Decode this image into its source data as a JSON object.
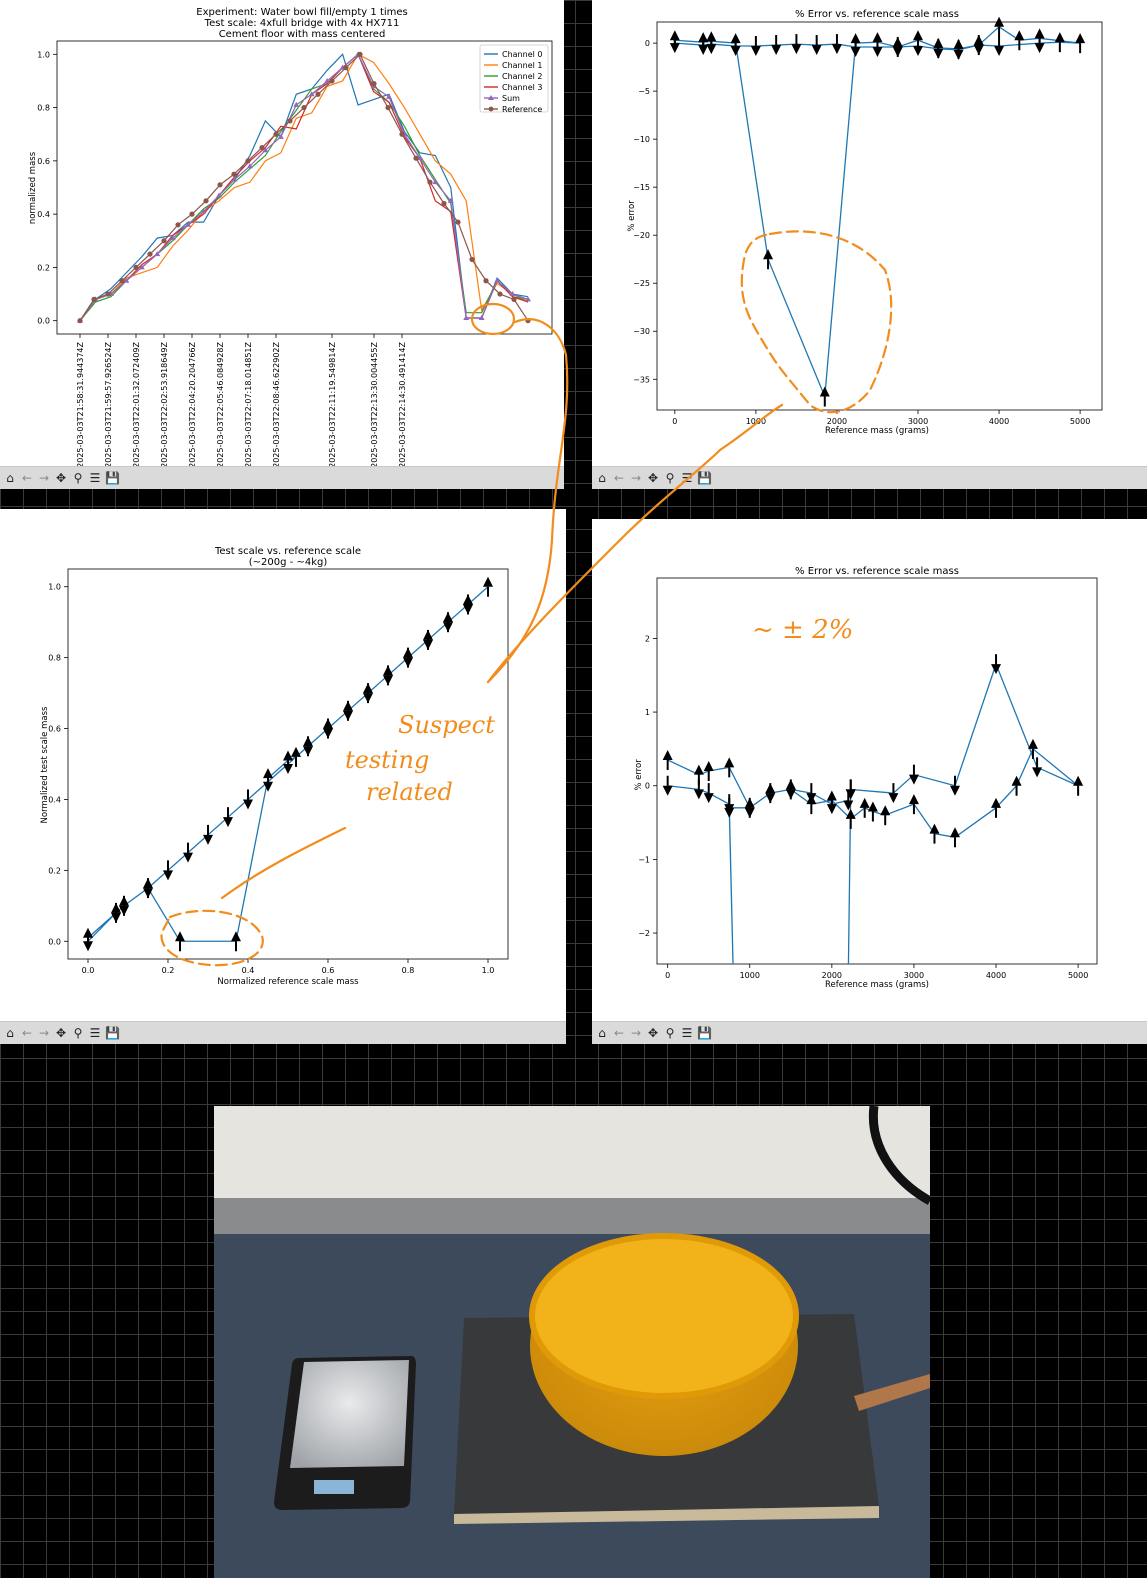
{
  "toolbar": {
    "home_icon": "⌂",
    "back_icon": "←",
    "forward_icon": "→",
    "pan_icon": "✥",
    "zoom_icon": "⚲",
    "config_icon": "☰",
    "save_icon": "💾"
  },
  "annotations": {
    "approx_2pct": "~ ± 2%",
    "suspect_line1": "Suspect",
    "suspect_line2": "testing",
    "suspect_line3": "related",
    "color": "#f28c1c"
  },
  "colors": {
    "channel0": "#1f77b4",
    "channel1": "#ff7f0e",
    "channel2": "#2ca02c",
    "channel3": "#d62728",
    "sum": "#9467bd",
    "reference": "#8c564b"
  },
  "chart_data": [
    {
      "type": "line",
      "title": "Experiment: Water bowl fill/empty 1 times",
      "subtitle1": "Test scale: 4xfull bridge with 4x HX711",
      "subtitle2": "Cement floor with mass centered",
      "ylabel": "normalized mass",
      "ylim": [
        -0.05,
        1.05
      ],
      "yticks": [
        "0.0",
        "0.2",
        "0.4",
        "0.6",
        "0.8",
        "1.0"
      ],
      "xtick_labels": [
        "2025-03-03T21:58:31.944374Z",
        "2025-03-03T21:59:57.926524Z",
        "2025-03-03T22:01:32.072409Z",
        "2025-03-03T22:02:53.918649Z",
        "2025-03-03T22:04:20.204766Z",
        "2025-03-03T22:05:46.084928Z",
        "2025-03-03T22:07:18.014851Z",
        "2025-03-03T22:08:46.622902Z",
        "2025-03-03T22:11:19.549814Z",
        "2025-03-03T22:13:30.004455Z",
        "2025-03-03T22:14:30.491414Z"
      ],
      "xtick_index": [
        0,
        2,
        4,
        6,
        8,
        10,
        12,
        14,
        18,
        21,
        23
      ],
      "legend": [
        "Channel 0",
        "Channel 1",
        "Channel 2",
        "Channel 3",
        "Sum",
        "Reference"
      ],
      "legend_position": "top-right",
      "series": [
        {
          "name": "Channel 0",
          "values": [
            0,
            0.08,
            0.12,
            0.18,
            0.24,
            0.31,
            0.32,
            0.37,
            0.37,
            0.47,
            0.53,
            0.62,
            0.75,
            0.69,
            0.85,
            0.87,
            0.94,
            1.0,
            0.81,
            0.83,
            0.85,
            0.71,
            0.63,
            0.62,
            0.5,
            0.01,
            0.01,
            0.16,
            0.1,
            0.09
          ]
        },
        {
          "name": "Channel 1",
          "values": [
            0,
            0.08,
            0.1,
            0.16,
            0.18,
            0.2,
            0.28,
            0.34,
            0.41,
            0.45,
            0.5,
            0.52,
            0.6,
            0.63,
            0.76,
            0.78,
            0.88,
            0.9,
            1.0,
            0.97,
            0.89,
            0.8,
            0.7,
            0.6,
            0.55,
            0.45,
            0.04,
            0.14,
            0.1,
            0.07
          ]
        },
        {
          "name": "Channel 2",
          "values": [
            0,
            0.07,
            0.09,
            0.15,
            0.2,
            0.25,
            0.3,
            0.36,
            0.42,
            0.46,
            0.52,
            0.57,
            0.62,
            0.71,
            0.79,
            0.87,
            0.89,
            0.95,
            1.0,
            0.87,
            0.82,
            0.73,
            0.62,
            0.53,
            0.44,
            0.03,
            0.03,
            0.15,
            0.09,
            0.08
          ]
        },
        {
          "name": "Channel 3",
          "values": [
            0,
            0.08,
            0.1,
            0.15,
            0.21,
            0.25,
            0.32,
            0.36,
            0.4,
            0.47,
            0.54,
            0.6,
            0.65,
            0.73,
            0.72,
            0.85,
            0.89,
            0.95,
            1.0,
            0.86,
            0.82,
            0.69,
            0.61,
            0.45,
            0.41,
            0.01,
            0.01,
            0.15,
            0.09,
            0.07
          ]
        },
        {
          "name": "Sum",
          "values": [
            0,
            0.08,
            0.1,
            0.15,
            0.2,
            0.25,
            0.31,
            0.36,
            0.41,
            0.47,
            0.53,
            0.58,
            0.64,
            0.69,
            0.81,
            0.85,
            0.9,
            0.95,
            1.0,
            0.88,
            0.84,
            0.7,
            0.61,
            0.52,
            0.45,
            0.01,
            0.01,
            0.15,
            0.1,
            0.08
          ]
        },
        {
          "name": "Reference",
          "values": [
            0,
            0.08,
            0.1,
            0.15,
            0.2,
            0.25,
            0.3,
            0.36,
            0.4,
            0.45,
            0.51,
            0.55,
            0.6,
            0.65,
            0.7,
            0.75,
            0.8,
            0.85,
            0.9,
            0.95,
            1.0,
            0.89,
            0.8,
            0.7,
            0.61,
            0.52,
            0.44,
            0.37,
            0.23,
            0.15,
            0.1,
            0.08,
            0.0
          ]
        }
      ]
    },
    {
      "type": "line",
      "title": "% Error vs. reference scale mass",
      "xlabel": "Reference mass (grams)",
      "ylabel": "% error",
      "xlim": [
        -220,
        5270
      ],
      "ylim": [
        -38.2,
        2.2
      ],
      "xticks": [
        0,
        1000,
        2000,
        3000,
        4000,
        5000
      ],
      "yticks": [
        0,
        -5,
        -10,
        -15,
        -20,
        -25,
        -30,
        -35
      ],
      "series": [
        {
          "name": "",
          "x": [
            0,
            350,
            450,
            750,
            1150,
            1850,
            2230,
            2500,
            2750,
            3000,
            3250,
            3500,
            3750,
            4000,
            4250,
            4500,
            5000,
            4750,
            4500,
            4000,
            3750,
            3500,
            3250,
            3000,
            2750,
            2500,
            2230,
            2000,
            1750,
            1500,
            1250,
            1000,
            750,
            450,
            350,
            0
          ],
          "y": [
            0.3,
            0.1,
            0.2,
            0.0,
            -22.5,
            -36.8,
            0.0,
            0.1,
            -0.4,
            0.3,
            -0.5,
            -0.6,
            -0.2,
            1.7,
            0.3,
            0.5,
            0.0,
            0.1,
            0.0,
            -0.3,
            -0.2,
            -0.7,
            -0.6,
            -0.3,
            -0.4,
            -0.4,
            -0.4,
            -0.1,
            -0.2,
            -0.1,
            -0.2,
            -0.3,
            -0.3,
            -0.1,
            -0.2,
            0.0
          ]
        }
      ]
    },
    {
      "type": "line",
      "title": "Test scale vs. reference scale",
      "subtitle": "(~200g - ~4kg)",
      "xlabel": "Normalized reference scale mass",
      "ylabel": "Normalized test scale mass",
      "xlim": [
        -0.05,
        1.05
      ],
      "ylim": [
        -0.05,
        1.05
      ],
      "xticks": [
        "0.0",
        "0.2",
        "0.4",
        "0.6",
        "0.8",
        "1.0"
      ],
      "yticks": [
        "0.0",
        "0.2",
        "0.4",
        "0.6",
        "0.8",
        "1.0"
      ],
      "series": [
        {
          "name": "",
          "x": [
            0,
            0.07,
            0.09,
            0.15,
            0.23,
            0.37,
            0.45,
            0.5,
            0.52,
            0.55,
            0.6,
            0.65,
            0.7,
            0.75,
            0.8,
            0.85,
            0.9,
            0.95,
            1.0,
            0.95,
            0.9,
            0.85,
            0.8,
            0.75,
            0.7,
            0.65,
            0.6,
            0.55,
            0.5,
            0.45,
            0.4,
            0.35,
            0.3,
            0.25,
            0.2,
            0.15,
            0.09,
            0.07,
            0
          ],
          "y": [
            0.01,
            0.08,
            0.1,
            0.15,
            0.0,
            0.0,
            0.46,
            0.51,
            0.52,
            0.55,
            0.6,
            0.65,
            0.7,
            0.75,
            0.8,
            0.85,
            0.9,
            0.95,
            1.0,
            0.95,
            0.9,
            0.85,
            0.8,
            0.75,
            0.7,
            0.65,
            0.6,
            0.55,
            0.5,
            0.45,
            0.4,
            0.35,
            0.3,
            0.25,
            0.2,
            0.15,
            0.1,
            0.08,
            0.0
          ]
        }
      ]
    },
    {
      "type": "line",
      "title": "% Error vs. reference scale mass",
      "xlabel": "Reference mass (grams)",
      "ylabel": "% error",
      "xlim": [
        -130,
        5230
      ],
      "ylim": [
        -2.42,
        2.82
      ],
      "xticks": [
        0,
        1000,
        2000,
        3000,
        4000,
        5000
      ],
      "yticks": [
        2,
        1,
        0,
        -1,
        -2
      ],
      "series": [
        {
          "name": "",
          "x": [
            0,
            380,
            500,
            750,
            1000,
            1250,
            1500,
            1750,
            2000,
            2230,
            2400,
            2500,
            2650,
            3000,
            3250,
            3500,
            4000,
            4250,
            4450,
            5000,
            4500,
            4000,
            3500,
            3000,
            2750,
            2230,
            2200,
            2230,
            2200,
            2000,
            1750,
            1500,
            1250,
            1000,
            750,
            800,
            750,
            500,
            380,
            0
          ],
          "y": [
            0.35,
            0.15,
            0.2,
            0.25,
            -0.3,
            -0.1,
            -0.05,
            -0.25,
            -0.2,
            -0.45,
            -0.3,
            -0.35,
            -0.4,
            -0.25,
            -0.65,
            -0.7,
            -0.3,
            0.0,
            0.5,
            0.0,
            0.25,
            1.65,
            0.0,
            0.15,
            -0.1,
            -0.05,
            -2.6,
            -0.05,
            -0.2,
            -0.25,
            -0.1,
            -0.05,
            -0.1,
            -0.3,
            -0.3,
            -2.6,
            -0.25,
            -0.1,
            -0.05,
            0.0
          ]
        }
      ]
    }
  ]
}
